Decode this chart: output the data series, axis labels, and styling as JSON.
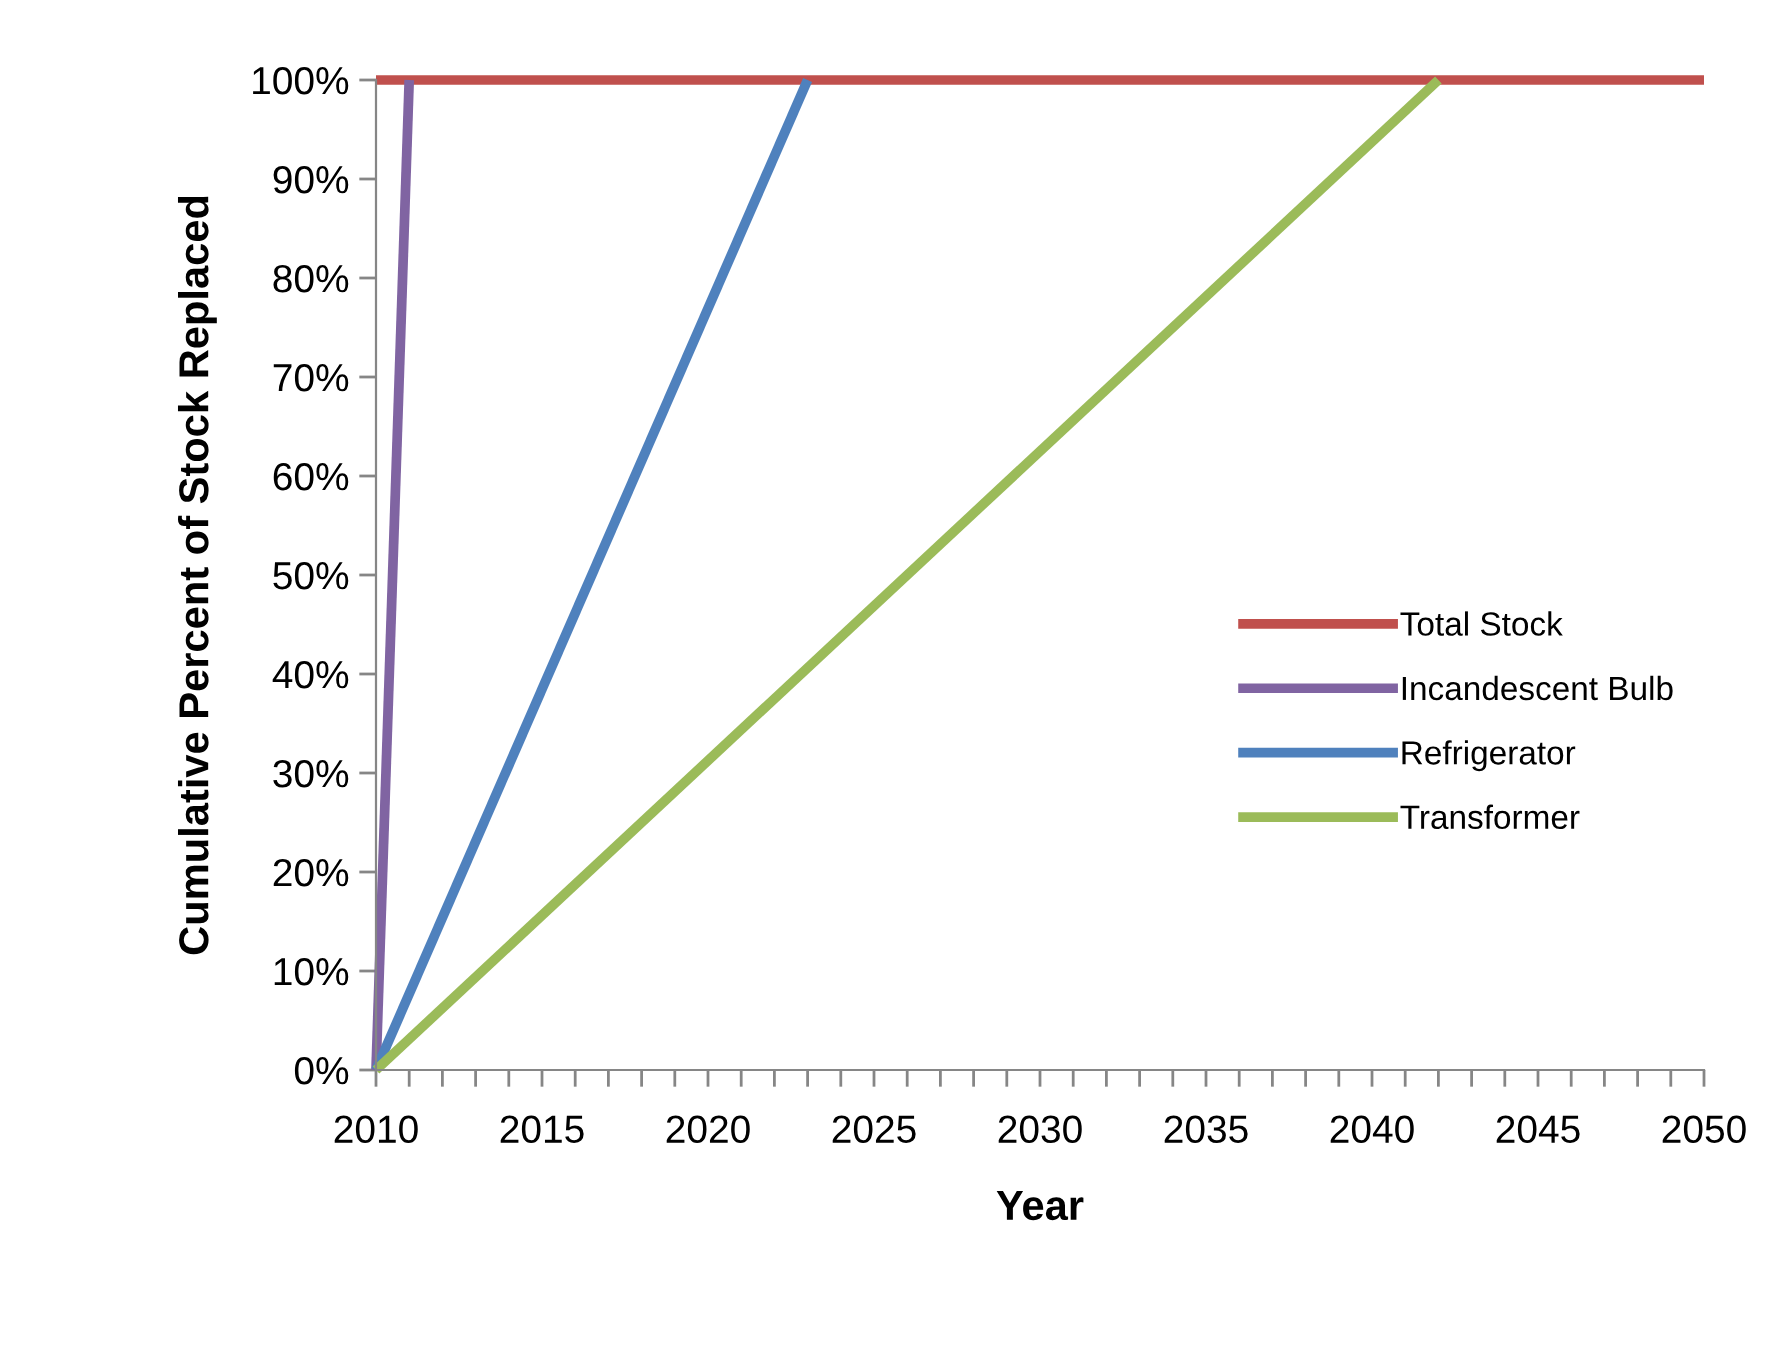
{
  "chart_data": {
    "type": "line",
    "xlabel": "Year",
    "ylabel": "Cumulative Percent of Stock Replaced",
    "series": [
      {
        "name": "Total Stock",
        "color": "#c0504d",
        "x": [
          2010,
          2050
        ],
        "values": [
          100,
          100
        ]
      },
      {
        "name": "Incandescent Bulb",
        "color": "#8064a2",
        "x": [
          2010,
          2011
        ],
        "values": [
          0,
          100
        ]
      },
      {
        "name": "Refrigerator",
        "color": "#4f81bd",
        "x": [
          2010,
          2023
        ],
        "values": [
          0,
          100
        ]
      },
      {
        "name": "Transformer",
        "color": "#9bbb59",
        "x": [
          2010,
          2042
        ],
        "values": [
          0,
          100
        ]
      }
    ],
    "xlim": [
      2010,
      2050
    ],
    "xticks": [
      2010,
      {
        "value": 2011,
        "label": null
      },
      {
        "value": 2012,
        "label": null
      },
      {
        "value": 2013,
        "label": null
      },
      {
        "value": 2014,
        "label": null
      },
      2015,
      {
        "value": 2016,
        "label": null
      },
      {
        "value": 2017,
        "label": null
      },
      {
        "value": 2018,
        "label": null
      },
      {
        "value": 2019,
        "label": null
      },
      2020,
      {
        "value": 2021,
        "label": null
      },
      {
        "value": 2022,
        "label": null
      },
      {
        "value": 2023,
        "label": null
      },
      {
        "value": 2024,
        "label": null
      },
      2025,
      {
        "value": 2026,
        "label": null
      },
      {
        "value": 2027,
        "label": null
      },
      {
        "value": 2028,
        "label": null
      },
      {
        "value": 2029,
        "label": null
      },
      2030,
      {
        "value": 2031,
        "label": null
      },
      {
        "value": 2032,
        "label": null
      },
      {
        "value": 2033,
        "label": null
      },
      {
        "value": 2034,
        "label": null
      },
      2035,
      {
        "value": 2036,
        "label": null
      },
      {
        "value": 2037,
        "label": null
      },
      {
        "value": 2038,
        "label": null
      },
      {
        "value": 2039,
        "label": null
      },
      2040,
      {
        "value": 2041,
        "label": null
      },
      {
        "value": 2042,
        "label": null
      },
      {
        "value": 2043,
        "label": null
      },
      {
        "value": 2044,
        "label": null
      },
      2045,
      {
        "value": 2046,
        "label": null
      },
      {
        "value": 2047,
        "label": null
      },
      {
        "value": 2048,
        "label": null
      },
      {
        "value": 2049,
        "label": null
      },
      2050
    ],
    "ylim": [
      0,
      100
    ],
    "yticks": [
      {
        "value": 0,
        "label": "0%"
      },
      {
        "value": 10,
        "label": "10%"
      },
      {
        "value": 20,
        "label": "20%"
      },
      {
        "value": 30,
        "label": "30%"
      },
      {
        "value": 40,
        "label": "40%"
      },
      {
        "value": 50,
        "label": "50%"
      },
      {
        "value": 60,
        "label": "60%"
      },
      {
        "value": 70,
        "label": "70%"
      },
      {
        "value": 80,
        "label": "80%"
      },
      {
        "value": 90,
        "label": "90%"
      },
      {
        "value": 100,
        "label": "100%"
      }
    ],
    "grid": false,
    "legend": "right",
    "marker": "none",
    "line_style": "solid"
  }
}
